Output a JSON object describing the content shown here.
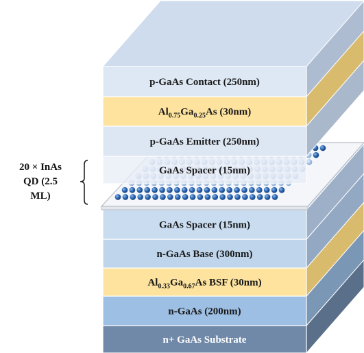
{
  "layers": [
    {
      "id": "p-contact",
      "label": "p-GaAs Contact (250nm)",
      "front": "#dde8f4",
      "top": "#cfdcee",
      "side": "#aebcd1"
    },
    {
      "id": "al075",
      "label_parts": [
        [
          "Al",
          ""
        ],
        [
          "0.75",
          "sub"
        ],
        [
          "Ga",
          ""
        ],
        [
          "0.25",
          "sub"
        ],
        [
          "As (30nm)",
          ""
        ]
      ],
      "front": "#fde39e",
      "side": "#d9bb6e"
    },
    {
      "id": "p-emitter",
      "label": "p-GaAs Emitter (250nm)",
      "front": "#dde6f3",
      "side": "#aab8cc"
    },
    {
      "id": "spacer-top",
      "label": "GaAs Spacer (15nm)",
      "front": "#e9eef7",
      "side": "#bcc6d6"
    },
    {
      "id": "spacer-bottom",
      "label": "GaAs Spacer (15nm)",
      "front": "#c9dcf0",
      "side": "#9db0c7"
    },
    {
      "id": "n-base",
      "label": "n-GaAs Base (300nm)",
      "front": "#bfd5ec",
      "side": "#93a9c3"
    },
    {
      "id": "al033",
      "label_parts": [
        [
          "Al",
          ""
        ],
        [
          "0.33",
          "sub"
        ],
        [
          "Ga",
          ""
        ],
        [
          "0.67",
          "sub"
        ],
        [
          "As BSF (30nm)",
          ""
        ]
      ],
      "front": "#fde39e",
      "side": "#d9bb6e"
    },
    {
      "id": "n-gaas",
      "label": "n-GaAs (200nm)",
      "front": "#9dbfe3",
      "side": "#7b97b6"
    },
    {
      "id": "substrate",
      "label": "n+ GaAs Substrate",
      "front": "#7189a9",
      "side": "#5a6f89",
      "light": true
    }
  ],
  "qd_label": [
    "20 × InAs",
    "QD (2.5",
    "ML)"
  ],
  "colors": {
    "dot_dark": "#1f5aa8",
    "dot_light": "#a9c7ea",
    "wetting_layer": "#f4f6f9"
  }
}
